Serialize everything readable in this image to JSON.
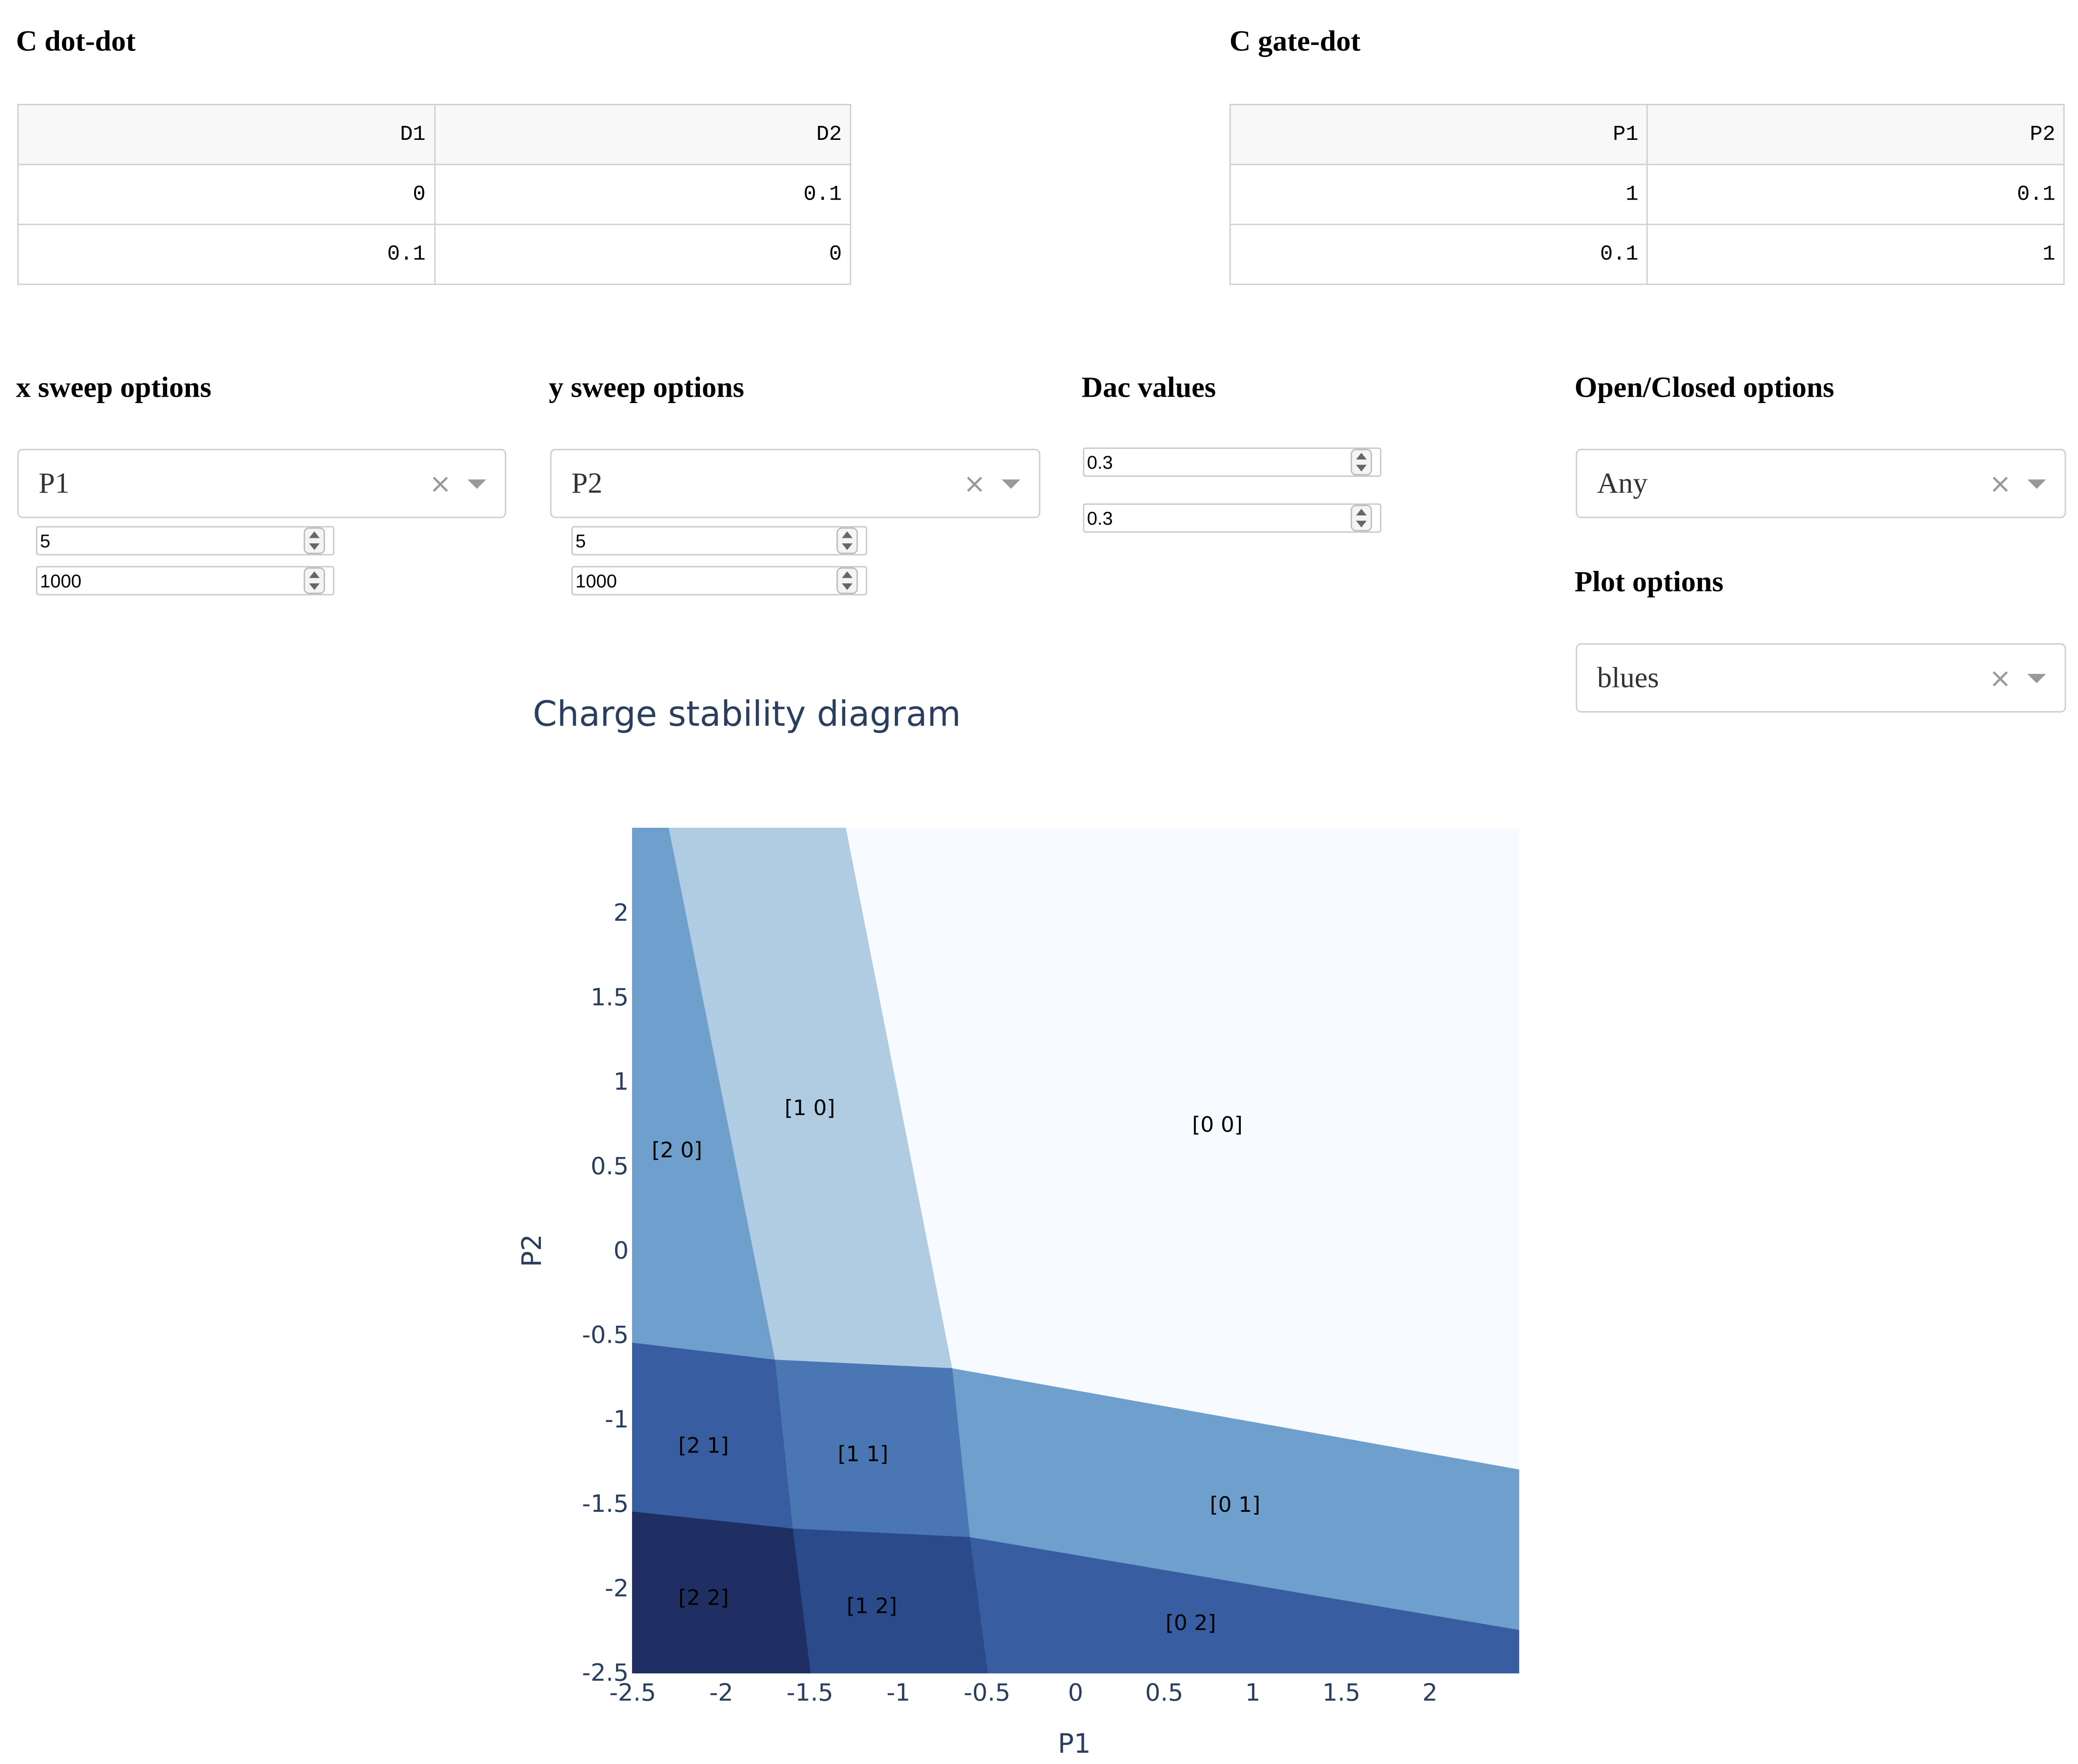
{
  "c_dot_dot": {
    "title": "C dot-dot",
    "columns": [
      "D1",
      "D2"
    ],
    "rows": [
      [
        "0",
        "0.1"
      ],
      [
        "0.1",
        "0"
      ]
    ]
  },
  "c_gate_dot": {
    "title": "C gate-dot",
    "columns": [
      "P1",
      "P2"
    ],
    "rows": [
      [
        "1",
        "0.1"
      ],
      [
        "0.1",
        "1"
      ]
    ]
  },
  "x_sweep": {
    "title": "x sweep options",
    "selected": "P1",
    "range": "5",
    "points": "1000"
  },
  "y_sweep": {
    "title": "y sweep options",
    "selected": "P2",
    "range": "5",
    "points": "1000"
  },
  "dac": {
    "title": "Dac values",
    "values": [
      "0.3",
      "0.3"
    ]
  },
  "open_closed": {
    "title": "Open/Closed options",
    "selected": "Any"
  },
  "plot_options": {
    "title": "Plot options",
    "selected": "blues"
  },
  "icons": {
    "clear": "×",
    "clear_icon": "close-icon",
    "caret_icon": "chevron-down-icon"
  },
  "chart_data": {
    "type": "heatmap",
    "title": "Charge stability diagram",
    "xlabel": "P1",
    "ylabel": "P2",
    "xlim": [
      -2.5,
      2.5
    ],
    "ylim": [
      -2.5,
      2.5
    ],
    "xticks": [
      "-2.5",
      "-2",
      "-1.5",
      "-1",
      "-0.5",
      "0",
      "0.5",
      "1",
      "1.5",
      "2"
    ],
    "yticks": [
      "-2.5",
      "-2",
      "-1.5",
      "-1",
      "-0.5",
      "0",
      "0.5",
      "1",
      "1.5",
      "2"
    ],
    "colorscale": "blues",
    "regions": [
      {
        "label": "[0 0]",
        "color": "#f7fbff",
        "center": [
          0.8,
          0.75
        ]
      },
      {
        "label": "[1 0]",
        "color": "#b0cce2",
        "center": [
          -1.5,
          0.85
        ]
      },
      {
        "label": "[2 0]",
        "color": "#6f9fcc",
        "center": [
          -2.25,
          0.6
        ]
      },
      {
        "label": "[0 1]",
        "color": "#6f9fcc",
        "center": [
          0.9,
          -1.5
        ]
      },
      {
        "label": "[1 1]",
        "color": "#4a77b4",
        "center": [
          -1.2,
          -1.2
        ]
      },
      {
        "label": "[2 1]",
        "color": "#385da0",
        "center": [
          -2.1,
          -1.15
        ]
      },
      {
        "label": "[0 2]",
        "color": "#385da0",
        "center": [
          0.65,
          -2.2
        ]
      },
      {
        "label": "[1 2]",
        "color": "#2a4a8a",
        "center": [
          -1.15,
          -2.1
        ]
      },
      {
        "label": "[2 2]",
        "color": "#1f2f64",
        "center": [
          -2.1,
          -2.05
        ]
      }
    ],
    "transitions": {
      "upper_left_column": [
        [
          -2.3,
          2.5
        ],
        [
          -1.7,
          -0.65
        ]
      ],
      "mid_column": [
        [
          -1.3,
          2.5
        ],
        [
          -0.7,
          -0.7
        ]
      ],
      "low_column_1": [
        [
          -1.75,
          -0.65
        ],
        [
          -1.6,
          -1.65
        ],
        [
          -1.5,
          -2.5
        ]
      ],
      "low_column_2": [
        [
          -0.7,
          -0.7
        ],
        [
          -0.6,
          -1.7
        ],
        [
          -0.5,
          -2.5
        ]
      ],
      "upper_row": [
        [
          -2.5,
          -0.55
        ],
        [
          -1.7,
          -0.65
        ],
        [
          -0.7,
          -0.7
        ],
        [
          2.5,
          -1.3
        ]
      ],
      "lower_row": [
        [
          -2.5,
          -1.55
        ],
        [
          -1.6,
          -1.65
        ],
        [
          -0.6,
          -1.7
        ],
        [
          2.5,
          -2.25
        ]
      ]
    }
  }
}
